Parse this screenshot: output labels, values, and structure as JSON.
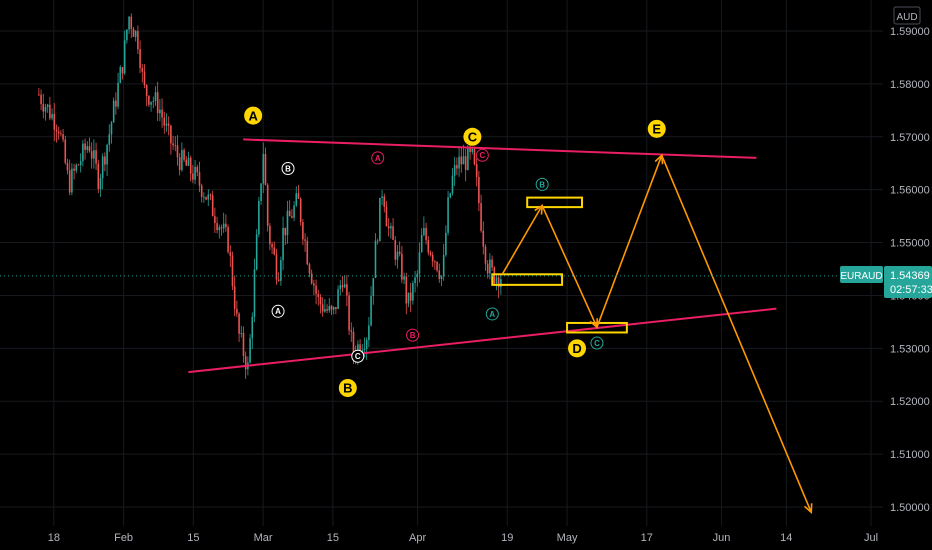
{
  "chart_data": {
    "type": "candlestick",
    "symbol": "EURAUD",
    "currency": "AUD",
    "last_price": "1.54369",
    "countdown": "02:57:33",
    "y_ticks": [
      "1.59000",
      "1.58000",
      "1.57000",
      "1.56000",
      "1.55000",
      "1.54000",
      "1.53000",
      "1.52000",
      "1.51000",
      "1.50000"
    ],
    "y_tick_values": [
      1.59,
      1.58,
      1.57,
      1.56,
      1.55,
      1.54,
      1.53,
      1.52,
      1.51,
      1.5
    ],
    "ylim": [
      1.4985,
      1.5995
    ],
    "x_ticks": [
      "18",
      "Feb",
      "15",
      "Mar",
      "15",
      "Apr",
      "19",
      "May",
      "17",
      "Jun",
      "14",
      "Jul"
    ],
    "x_tick_dates": [
      "2021-01-18",
      "2021-02-01",
      "2021-02-15",
      "2021-03-01",
      "2021-03-15",
      "2021-04-01",
      "2021-04-19",
      "2021-05-01",
      "2021-05-17",
      "2021-06-01",
      "2021-06-14",
      "2021-07-01"
    ],
    "price_path": [
      [
        "2021-01-15",
        1.578
      ],
      [
        "2021-01-19",
        1.572
      ],
      [
        "2021-01-21",
        1.561
      ],
      [
        "2021-01-25",
        1.569
      ],
      [
        "2021-01-27",
        1.562
      ],
      [
        "2021-01-29",
        1.57
      ],
      [
        "2021-02-01",
        1.585
      ],
      [
        "2021-02-02",
        1.593
      ],
      [
        "2021-02-04",
        1.588
      ],
      [
        "2021-02-05",
        1.579
      ],
      [
        "2021-02-08",
        1.576
      ],
      [
        "2021-02-10",
        1.57
      ],
      [
        "2021-02-12",
        1.566
      ],
      [
        "2021-02-15",
        1.563
      ],
      [
        "2021-02-17",
        1.56
      ],
      [
        "2021-02-19",
        1.556
      ],
      [
        "2021-02-22",
        1.55
      ],
      [
        "2021-02-24",
        1.533
      ],
      [
        "2021-02-26",
        1.526
      ],
      [
        "2021-03-01",
        1.568
      ],
      [
        "2021-03-02",
        1.552
      ],
      [
        "2021-03-04",
        1.544
      ],
      [
        "2021-03-05",
        1.552
      ],
      [
        "2021-03-08",
        1.558
      ],
      [
        "2021-03-10",
        1.547
      ],
      [
        "2021-03-12",
        1.539
      ],
      [
        "2021-03-15",
        1.536
      ],
      [
        "2021-03-17",
        1.544
      ],
      [
        "2021-03-19",
        1.529
      ],
      [
        "2021-03-22",
        1.533
      ],
      [
        "2021-03-23",
        1.544
      ],
      [
        "2021-03-25",
        1.561
      ],
      [
        "2021-03-26",
        1.553
      ],
      [
        "2021-03-29",
        1.544
      ],
      [
        "2021-03-30",
        1.538
      ],
      [
        "2021-04-01",
        1.544
      ],
      [
        "2021-04-02",
        1.552
      ],
      [
        "2021-04-05",
        1.546
      ],
      [
        "2021-04-06",
        1.543
      ],
      [
        "2021-04-07",
        1.556
      ],
      [
        "2021-04-08",
        1.562
      ],
      [
        "2021-04-09",
        1.565
      ],
      [
        "2021-04-12",
        1.566
      ],
      [
        "2021-04-13",
        1.56
      ],
      [
        "2021-04-14",
        1.552
      ],
      [
        "2021-04-15",
        1.546
      ],
      [
        "2021-04-16",
        1.544
      ],
      [
        "2021-04-18",
        1.5437
      ]
    ],
    "trendlines": [
      {
        "name": "upper",
        "color": "#e91e63",
        "from": [
          "2021-02-25",
          1.5695
        ],
        "to": [
          "2021-06-08",
          1.566
        ]
      },
      {
        "name": "lower",
        "color": "#e91e63",
        "from": [
          "2021-02-14",
          1.5255
        ],
        "to": [
          "2021-06-12",
          1.5375
        ]
      }
    ],
    "projection": {
      "color": "#ff9800",
      "points": [
        [
          "2021-04-18",
          1.544
        ],
        [
          "2021-04-26",
          1.557
        ],
        [
          "2021-05-07",
          1.534
        ],
        [
          "2021-05-20",
          1.5665
        ],
        [
          "2021-06-19",
          1.499
        ]
      ]
    },
    "zones": [
      {
        "color": "#ffd600",
        "from": [
          "2021-04-16",
          1.544
        ],
        "to": [
          "2021-04-30",
          1.542
        ]
      },
      {
        "color": "#ffd600",
        "from": [
          "2021-04-23",
          1.5585
        ],
        "to": [
          "2021-05-04",
          1.5567
        ]
      },
      {
        "color": "#ffd600",
        "from": [
          "2021-05-01",
          1.5348
        ],
        "to": [
          "2021-05-13",
          1.533
        ]
      }
    ],
    "wave_labels": [
      {
        "text": "A",
        "style": "yellow",
        "at": [
          "2021-02-27",
          1.574
        ]
      },
      {
        "text": "B",
        "style": "yellow",
        "at": [
          "2021-03-18",
          1.5225
        ]
      },
      {
        "text": "C",
        "style": "yellow",
        "at": [
          "2021-04-12",
          1.57
        ]
      },
      {
        "text": "D",
        "style": "yellow",
        "at": [
          "2021-05-03",
          1.53
        ]
      },
      {
        "text": "E",
        "style": "yellow",
        "at": [
          "2021-05-19",
          1.5715
        ]
      },
      {
        "text": "B",
        "style": "white",
        "at": [
          "2021-03-06",
          1.564
        ]
      },
      {
        "text": "A",
        "style": "white",
        "at": [
          "2021-03-04",
          1.537
        ]
      },
      {
        "text": "C",
        "style": "white",
        "at": [
          "2021-03-20",
          1.5285
        ]
      },
      {
        "text": "A",
        "style": "red",
        "at": [
          "2021-03-24",
          1.566
        ]
      },
      {
        "text": "B",
        "style": "red",
        "at": [
          "2021-03-31",
          1.5325
        ]
      },
      {
        "text": "C",
        "style": "red",
        "at": [
          "2021-04-14",
          1.5665
        ]
      },
      {
        "text": "B",
        "style": "green",
        "at": [
          "2021-04-26",
          1.561
        ]
      },
      {
        "text": "A",
        "style": "green",
        "at": [
          "2021-04-16",
          1.5365
        ]
      },
      {
        "text": "C",
        "style": "green",
        "at": [
          "2021-05-07",
          1.531
        ]
      }
    ],
    "colors": {
      "background": "#000000",
      "up": "#26a69a",
      "down": "#ef5350",
      "grid": "#161a1e",
      "price_line": "#26a69a"
    },
    "grid": true
  }
}
